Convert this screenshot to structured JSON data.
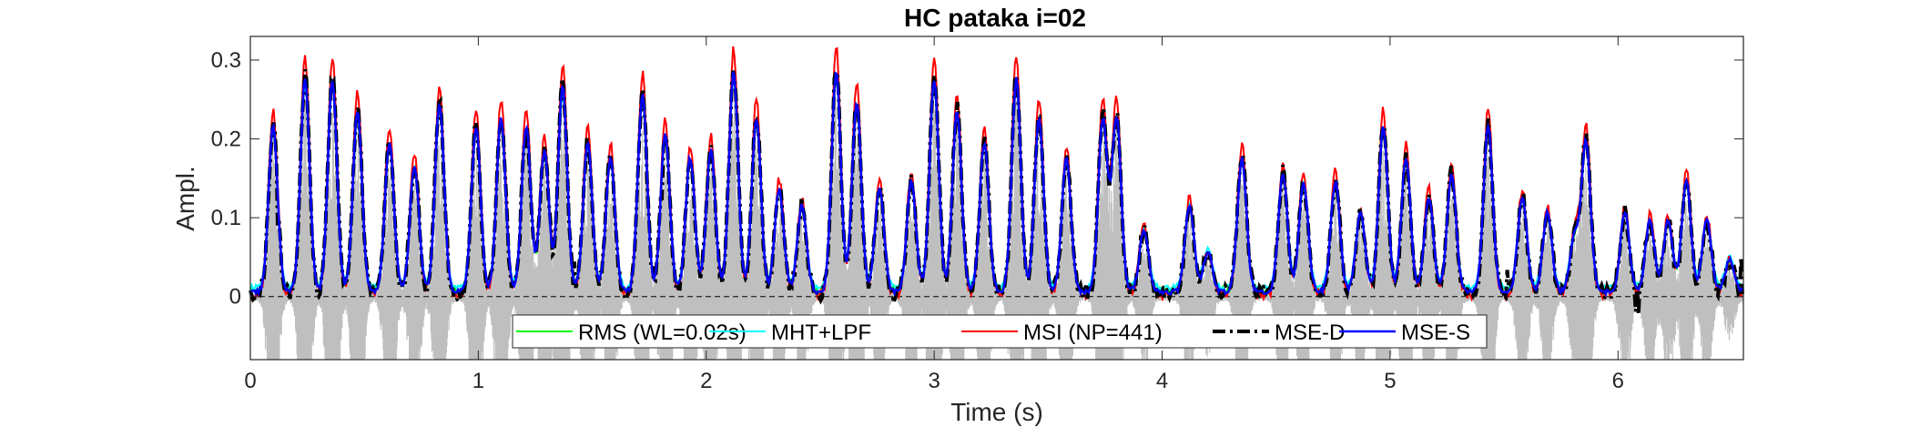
{
  "chart_data": {
    "type": "line",
    "title": "HC pataka i=02",
    "xlabel": "Time (s)",
    "ylabel": "Ampl.",
    "xlim": [
      0,
      6.55
    ],
    "ylim": [
      -0.08,
      0.33
    ],
    "xticks": [
      0,
      1,
      2,
      3,
      4,
      5,
      6
    ],
    "yticks": [
      0,
      0.1,
      0.2,
      0.3
    ],
    "xtick_labels": [
      "0",
      "1",
      "2",
      "3",
      "4",
      "5",
      "6"
    ],
    "ytick_labels": [
      "0",
      "0.1",
      "0.2",
      "0.3"
    ],
    "zero_line": true,
    "legend_position": "bottom-center",
    "waveform": {
      "color": "#bfbfbf",
      "description_value": "raw signal"
    },
    "syllable_peaks": [
      [
        0.1,
        0.21
      ],
      [
        0.24,
        0.27
      ],
      [
        0.36,
        0.27
      ],
      [
        0.47,
        0.23
      ],
      [
        0.61,
        0.19
      ],
      [
        0.72,
        0.16
      ],
      [
        0.83,
        0.24
      ],
      [
        0.99,
        0.21
      ],
      [
        1.1,
        0.22
      ],
      [
        1.21,
        0.21
      ],
      [
        1.29,
        0.18
      ],
      [
        1.37,
        0.26
      ],
      [
        1.48,
        0.19
      ],
      [
        1.58,
        0.17
      ],
      [
        1.72,
        0.25
      ],
      [
        1.82,
        0.2
      ],
      [
        1.93,
        0.17
      ],
      [
        2.02,
        0.18
      ],
      [
        2.12,
        0.28
      ],
      [
        2.22,
        0.22
      ],
      [
        2.32,
        0.13
      ],
      [
        2.42,
        0.11
      ],
      [
        2.57,
        0.28
      ],
      [
        2.66,
        0.24
      ],
      [
        2.76,
        0.13
      ],
      [
        2.9,
        0.14
      ],
      [
        3.0,
        0.27
      ],
      [
        3.1,
        0.23
      ],
      [
        3.22,
        0.19
      ],
      [
        3.36,
        0.27
      ],
      [
        3.46,
        0.22
      ],
      [
        3.58,
        0.17
      ],
      [
        3.74,
        0.22
      ],
      [
        3.8,
        0.22
      ],
      [
        3.92,
        0.08
      ],
      [
        4.12,
        0.11
      ],
      [
        4.2,
        0.05
      ],
      [
        4.35,
        0.17
      ],
      [
        4.53,
        0.15
      ],
      [
        4.62,
        0.14
      ],
      [
        4.76,
        0.14
      ],
      [
        4.87,
        0.1
      ],
      [
        4.97,
        0.21
      ],
      [
        5.07,
        0.17
      ],
      [
        5.17,
        0.12
      ],
      [
        5.27,
        0.15
      ],
      [
        5.43,
        0.21
      ],
      [
        5.58,
        0.12
      ],
      [
        5.69,
        0.1
      ],
      [
        5.81,
        0.07
      ],
      [
        5.86,
        0.19
      ],
      [
        6.03,
        0.1
      ],
      [
        6.14,
        0.09
      ],
      [
        6.22,
        0.09
      ],
      [
        6.3,
        0.14
      ],
      [
        6.39,
        0.09
      ],
      [
        6.49,
        0.04
      ]
    ],
    "series": [
      {
        "name": "RMS (WL=0.02s)",
        "color": "#00ff00",
        "style": "solid",
        "width": 2
      },
      {
        "name": "MHT+LPF",
        "color": "#00ffff",
        "style": "solid",
        "width": 2
      },
      {
        "name": "MSI (NP=441)",
        "color": "#ff0000",
        "style": "solid",
        "width": 2
      },
      {
        "name": "MSE-D",
        "color": "#000000",
        "style": "dashdot",
        "width": 4
      },
      {
        "name": "MSE-S",
        "color": "#0000ff",
        "style": "solid",
        "width": 2.5
      }
    ]
  }
}
